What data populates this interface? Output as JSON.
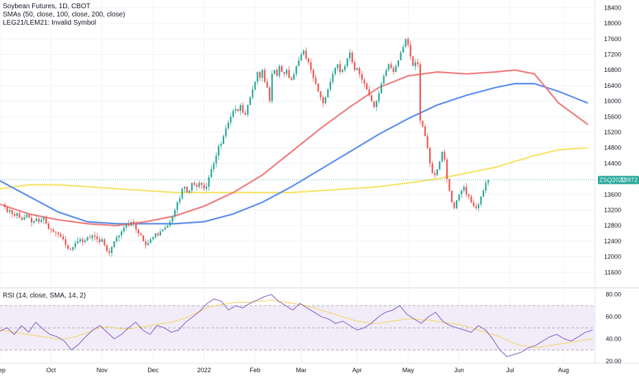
{
  "legend": {
    "title": "Soybean Futures, 1D, CBOT",
    "sma": "SMAs (50, close, 100, close, 200, close)",
    "spread": "LEG21/LEM21: Invalid Symbol",
    "rsi": "RSI (14, close, SMA, 14, 2)"
  },
  "price_tag": {
    "symbol": "ZSQ2022",
    "value": "13972"
  },
  "colors": {
    "up": "#26a69a",
    "down": "#ef5350",
    "sma50": "#ef7b7b",
    "sma100": "#5b8def",
    "sma200": "#f7e36a",
    "rsi": "#7e57c2",
    "rsi_ma": "#f5d76e",
    "rsi_band": "#ede7f6",
    "grid": "#f0f3fa",
    "tag": "#26a69a"
  },
  "chart_data": [
    {
      "type": "candlestick",
      "name": "price",
      "ylim": [
        11200,
        18600
      ],
      "y_ticks": [
        "11600",
        "12000",
        "12400",
        "12800",
        "13200",
        "13600",
        "14000",
        "14400",
        "14800",
        "15200",
        "15600",
        "16000",
        "16400",
        "16800",
        "17200",
        "17600",
        "18000",
        "18400"
      ],
      "x_ticks": [
        "Sep",
        "Oct",
        "Nov",
        "Dec",
        "2022",
        "Feb",
        "Mar",
        "Apr",
        "May",
        "Jun",
        "Jul",
        "Aug"
      ],
      "x_tick_pos": [
        0,
        21,
        42,
        63,
        84,
        105,
        124,
        147,
        168,
        189,
        210,
        232
      ],
      "x_range": [
        0,
        245
      ],
      "last_price": 13972,
      "closes": [
        13280,
        13150,
        13200,
        13100,
        13050,
        13120,
        13000,
        12950,
        13020,
        13080,
        13000,
        12880,
        12920,
        12980,
        12900,
        12950,
        13020,
        12850,
        12720,
        12700,
        12650,
        12620,
        12580,
        12520,
        12450,
        12300,
        12200,
        12180,
        12250,
        12350,
        12400,
        12450,
        12380,
        12420,
        12500,
        12480,
        12550,
        12520,
        12450,
        12380,
        12450,
        12300,
        12150,
        12100,
        12250,
        12400,
        12500,
        12550,
        12650,
        12750,
        12850,
        12800,
        12900,
        12850,
        12700,
        12600,
        12550,
        12400,
        12300,
        12350,
        12450,
        12500,
        12600,
        12550,
        12650,
        12700,
        12750,
        12800,
        12900,
        13050,
        13200,
        13400,
        13500,
        13750,
        13800,
        13650,
        13700,
        13900,
        13850,
        13800,
        13900,
        13850,
        13750,
        13800,
        14050,
        14250,
        14400,
        14600,
        14850,
        14900,
        15100,
        15300,
        15450,
        15600,
        15750,
        15800,
        15750,
        15900,
        15700,
        15650,
        15900,
        16100,
        16300,
        16500,
        16750,
        16600,
        16800,
        16500,
        16350,
        16000,
        16700,
        16800,
        16650,
        16900,
        16750,
        16700,
        16800,
        16600,
        16550,
        16700,
        16900,
        17050,
        17200,
        17300,
        17100,
        17000,
        16800,
        16600,
        16450,
        16250,
        16100,
        15950,
        16100,
        16300,
        16500,
        16700,
        16850,
        16950,
        16750,
        16800,
        16900,
        17100,
        17250,
        17000,
        16800,
        16850,
        16700,
        16550,
        16450,
        16300,
        16150,
        16000,
        15850,
        16000,
        16200,
        16450,
        16650,
        16800,
        16950,
        16850,
        16750,
        16900,
        17050,
        17250,
        17400,
        17600,
        17450,
        17150,
        16900,
        17000,
        16950,
        15500,
        15350,
        15100,
        14800,
        14400,
        14150,
        14100,
        14250,
        14450,
        14700,
        14500,
        14000,
        13700,
        13400,
        13250,
        13450,
        13600,
        13700,
        13800,
        13600,
        13550,
        13400,
        13300,
        13250,
        13350,
        13550,
        13700,
        13900,
        13972
      ],
      "volatility": 180,
      "sma50": [
        13350,
        13100,
        12950,
        12850,
        12800,
        12900,
        13050,
        13300,
        13650,
        14100,
        14700,
        15300,
        15850,
        16350,
        16650,
        16750,
        16700,
        16750,
        16800,
        16700,
        15950,
        15400
      ],
      "sma100": [
        13950,
        13550,
        13150,
        12900,
        12850,
        12850,
        12850,
        12900,
        13100,
        13400,
        13800,
        14250,
        14700,
        15150,
        15550,
        15900,
        16150,
        16350,
        16450,
        16450,
        16250,
        15950
      ],
      "sma200": [
        13750,
        13850,
        13850,
        13800,
        13750,
        13700,
        13650,
        13650,
        13650,
        13650,
        13650,
        13700,
        13750,
        13800,
        13900,
        14000,
        14150,
        14300,
        14450,
        14600,
        14750,
        14800
      ],
      "sma_x": [
        0,
        12,
        24,
        36,
        48,
        60,
        72,
        84,
        96,
        108,
        120,
        132,
        144,
        156,
        168,
        180,
        192,
        204,
        212,
        220,
        230,
        242
      ]
    },
    {
      "type": "line",
      "name": "rsi",
      "ylim": [
        18,
        86
      ],
      "y_ticks": [
        "20.00",
        "40.00",
        "60.00",
        "80.00"
      ],
      "bands": [
        30,
        70
      ],
      "mid": 50,
      "rsi": [
        47,
        50,
        44,
        52,
        46,
        55,
        49,
        44,
        42,
        38,
        30,
        35,
        42,
        48,
        52,
        46,
        40,
        44,
        50,
        55,
        48,
        44,
        52,
        50,
        46,
        48,
        55,
        60,
        65,
        72,
        76,
        74,
        66,
        70,
        68,
        72,
        75,
        78,
        80,
        74,
        70,
        66,
        72,
        68,
        64,
        60,
        58,
        54,
        56,
        52,
        48,
        50,
        54,
        60,
        64,
        66,
        70,
        62,
        58,
        54,
        60,
        64,
        56,
        52,
        50,
        48,
        46,
        52,
        48,
        40,
        30,
        24,
        26,
        28,
        32,
        34,
        38,
        42,
        44,
        40,
        38,
        42,
        46,
        48
      ],
      "rsi_ma": [
        48,
        47,
        46,
        45,
        44,
        43,
        42,
        41,
        40,
        40,
        41,
        43,
        45,
        48,
        50,
        51,
        50,
        49,
        49,
        50,
        51,
        52,
        53,
        54,
        55,
        57,
        59,
        62,
        65,
        68,
        70,
        71,
        72,
        73,
        73,
        73,
        74,
        74,
        75,
        74,
        73,
        72,
        71,
        70,
        68,
        66,
        64,
        62,
        60,
        58,
        56,
        55,
        54,
        54,
        55,
        56,
        57,
        58,
        58,
        57,
        57,
        56,
        55,
        54,
        53,
        52,
        50,
        48,
        46,
        44,
        42,
        39,
        36,
        34,
        33,
        32,
        33,
        34,
        35,
        36,
        37,
        38,
        39,
        40
      ]
    }
  ]
}
